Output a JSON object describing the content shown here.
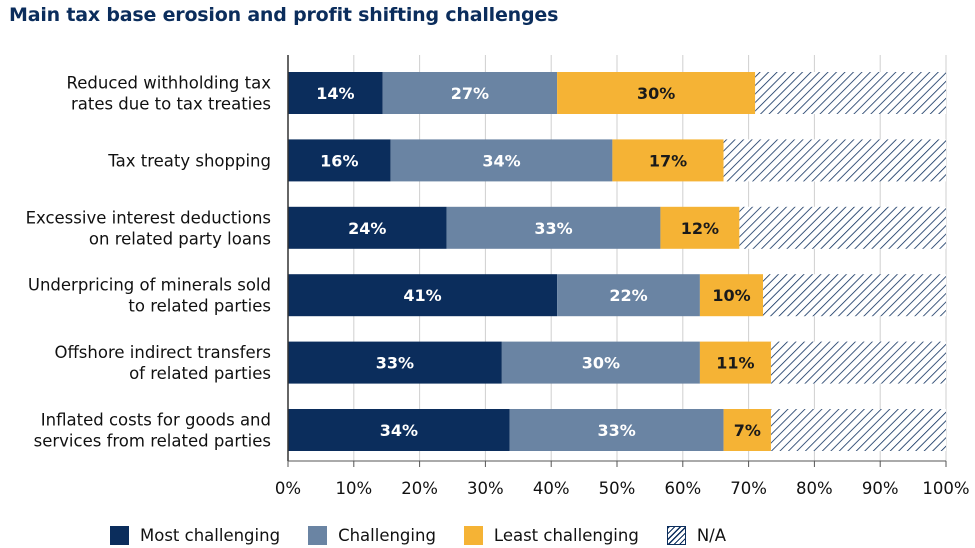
{
  "chart_data": {
    "type": "bar",
    "orientation": "horizontal",
    "stacked": true,
    "title": "Main tax base erosion and profit shifting challenges",
    "categories": [
      [
        "Reduced withholding tax",
        "rates due to tax treaties"
      ],
      [
        "Tax treaty shopping"
      ],
      [
        "Excessive interest deductions",
        "on related party loans"
      ],
      [
        "Underpricing of minerals sold",
        "to related parties"
      ],
      [
        "Offshore indirect transfers",
        "of related parties"
      ],
      [
        "Inflated costs for goods and",
        "services from related parties"
      ]
    ],
    "series": [
      {
        "name": "Most challenging",
        "color": "#0b2d5c",
        "label_color": "#ffffff",
        "values": [
          14.4,
          15.6,
          24.1,
          40.9,
          32.5,
          33.7
        ],
        "labels": [
          "14%",
          "16%",
          "24%",
          "41%",
          "33%",
          "34%"
        ]
      },
      {
        "name": "Challenging",
        "color": "#6a84a3",
        "label_color": "#ffffff",
        "values": [
          26.5,
          33.7,
          32.5,
          21.7,
          30.1,
          32.5
        ],
        "labels": [
          "27%",
          "34%",
          "33%",
          "22%",
          "30%",
          "33%"
        ]
      },
      {
        "name": "Least challenging",
        "color": "#f5b335",
        "label_color": "#1a1a1a",
        "values": [
          30.1,
          16.9,
          12.0,
          9.6,
          10.8,
          7.2
        ],
        "labels": [
          "30%",
          "17%",
          "12%",
          "10%",
          "11%",
          "7%"
        ]
      },
      {
        "name": "N/A",
        "color": "#0b2d5c",
        "pattern": "diagonal-hatch",
        "values": [
          29.0,
          33.8,
          31.4,
          27.8,
          26.6,
          26.6
        ],
        "labels": [
          "",
          "",
          "",
          "",
          "",
          ""
        ]
      }
    ],
    "xlim": [
      0,
      100
    ],
    "xticks": [
      "0%",
      "10%",
      "20%",
      "30%",
      "40%",
      "50%",
      "60%",
      "70%",
      "80%",
      "90%",
      "100%"
    ],
    "grid": true,
    "legend_position": "bottom"
  }
}
